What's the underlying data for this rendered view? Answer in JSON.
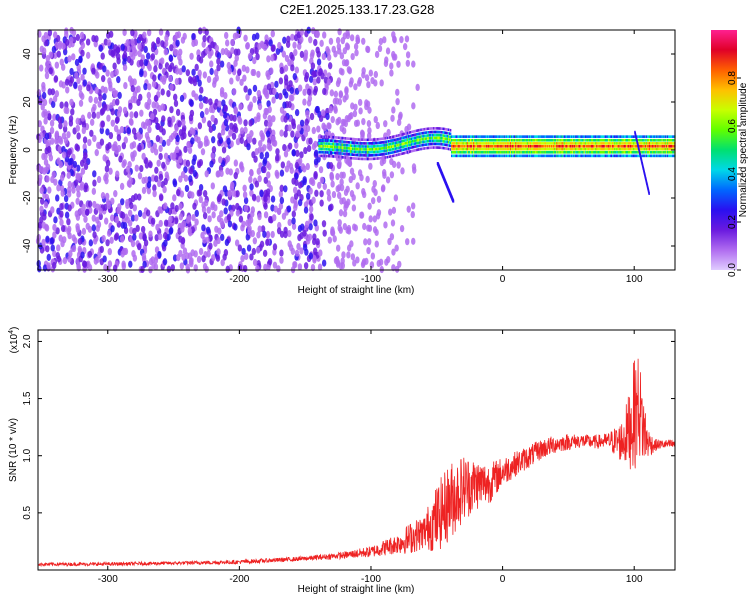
{
  "figure_title": "C2E1.2025.133.17.23.G28",
  "colorbar": {
    "label": "Normalized spectral amplitude",
    "ticks": [
      "0.0",
      "0.2",
      "0.4",
      "0.6",
      "0.8"
    ],
    "colors": [
      "#e0ccff",
      "#b06cf0",
      "#6a1adf",
      "#2a10f0",
      "#0066ff",
      "#00d8e8",
      "#00e070",
      "#60ff00",
      "#c8ff00",
      "#ffc000",
      "#ff6000",
      "#e00028",
      "#ff2090"
    ]
  },
  "chart_data": [
    {
      "type": "heatmap",
      "title": "",
      "xlabel": "Height of straight line (km)",
      "ylabel": "Frequency (Hz)",
      "xlim": [
        -353,
        131
      ],
      "ylim": [
        -50,
        50
      ],
      "xticks": [
        "-300",
        "-200",
        "-100",
        "0",
        "100"
      ],
      "yticks": [
        "40",
        "20",
        "0",
        "-20",
        "-40"
      ],
      "value_range": [
        0,
        1
      ],
      "description_series": [
        {
          "segment": "noise",
          "x_range": [
            -353,
            -120
          ],
          "frequency_range": [
            -50,
            50
          ],
          "amplitude": 0.15
        },
        {
          "segment": "signal-onset",
          "x_range": [
            -140,
            -40
          ],
          "frequency": [
            -3,
            5
          ],
          "amplitude": 0.45
        },
        {
          "segment": "strong-line",
          "x_range": [
            -40,
            131
          ],
          "frequency": 1.5,
          "amplitude": 0.9
        }
      ]
    },
    {
      "type": "line",
      "title": "",
      "xlabel": "Height of straight line (km)",
      "ylabel": "SNR (10 * v/v)",
      "y_scale_label": "(x10",
      "y_scale_exp": "4",
      "xlim": [
        -353,
        131
      ],
      "ylim": [
        0,
        21000
      ],
      "xticks": [
        "-300",
        "-200",
        "-100",
        "0",
        "100"
      ],
      "yticks": [
        "0.5",
        "1.0",
        "1.5",
        "2.0"
      ],
      "series": [
        {
          "color": "#ee2222",
          "x": [
            -353,
            -300,
            -250,
            -200,
            -150,
            -120,
            -100,
            -80,
            -70,
            -60,
            -50,
            -40,
            -30,
            -20,
            -10,
            0,
            10,
            20,
            30,
            40,
            50,
            60,
            70,
            80,
            90,
            95,
            100,
            103,
            107,
            110,
            115,
            120,
            131
          ],
          "y": [
            500,
            520,
            600,
            700,
            1000,
            1300,
            1600,
            2300,
            2800,
            3300,
            4500,
            6000,
            7200,
            7500,
            7600,
            8600,
            9300,
            9900,
            10600,
            11000,
            11200,
            11300,
            11200,
            11300,
            11200,
            12000,
            13500,
            14500,
            12500,
            11200,
            10900,
            11000,
            11000
          ],
          "noise_amplitude": [
            150,
            150,
            150,
            180,
            200,
            300,
            500,
            900,
            1400,
            1500,
            3000,
            3500,
            3000,
            2300,
            1800,
            1300,
            1100,
            1000,
            900,
            800,
            700,
            600,
            600,
            700,
            1800,
            3000,
            5000,
            4500,
            3500,
            1500,
            600,
            400,
            400
          ]
        }
      ]
    }
  ]
}
